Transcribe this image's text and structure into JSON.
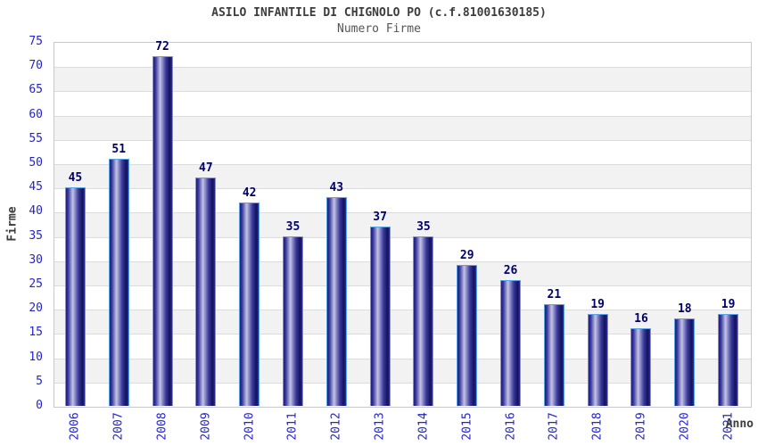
{
  "chart_data": {
    "type": "bar",
    "title": "ASILO INFANTILE DI CHIGNOLO PO (c.f.81001630185)",
    "subtitle": "Numero Firme",
    "xlabel": "Anno",
    "ylabel": "Firme",
    "categories": [
      "2006",
      "2007",
      "2008",
      "2009",
      "2010",
      "2011",
      "2012",
      "2013",
      "2014",
      "2015",
      "2016",
      "2017",
      "2018",
      "2019",
      "2020",
      "2021"
    ],
    "values": [
      45,
      51,
      72,
      47,
      42,
      35,
      43,
      37,
      35,
      29,
      26,
      21,
      19,
      16,
      18,
      19
    ],
    "ylim": [
      0,
      75
    ],
    "ytick_step": 5,
    "yticks": [
      0,
      5,
      10,
      15,
      20,
      25,
      30,
      35,
      40,
      45,
      50,
      55,
      60,
      65,
      70,
      75
    ],
    "grid": true,
    "legend_position": "none",
    "value_labels_shown": true,
    "colors": {
      "bar_dark": "#1c1c7e",
      "bar_light": "#c4c4e6",
      "bar_border": "#58a2ea",
      "tick_label": "#2424cc",
      "value_label": "#00006b",
      "title": "#3c3c3c",
      "subtitle": "#555555",
      "band_gray": "#f2f2f2",
      "grid_line": "#dcdcdc",
      "plot_border": "#c9c9c9",
      "background": "#ffffff"
    }
  }
}
